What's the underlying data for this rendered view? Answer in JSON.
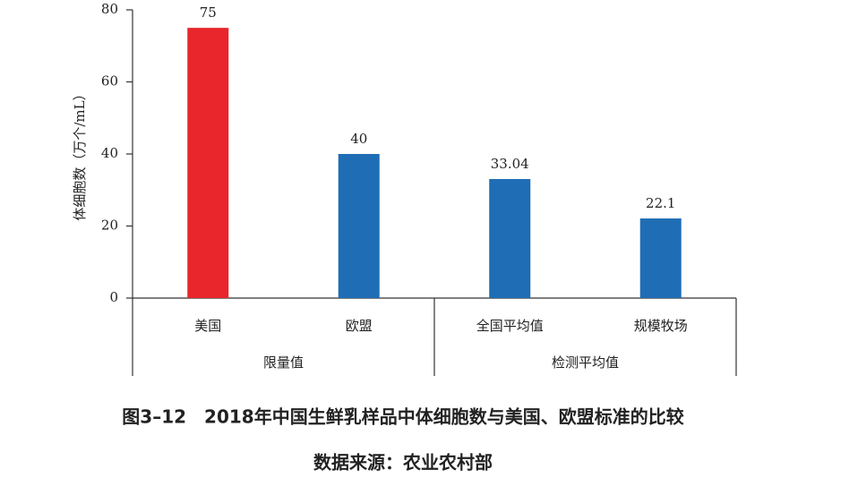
{
  "chart_data": {
    "type": "bar",
    "y_label": "体细胞数（万个/mL）",
    "groups": [
      {
        "name": "限量值",
        "categories": [
          "美国",
          "欧盟"
        ],
        "values": [
          75,
          40
        ],
        "colors": [
          "#e8262b",
          "#1f6db5"
        ]
      },
      {
        "name": "检测平均值",
        "categories": [
          "全国平均值",
          "规模牧场"
        ],
        "values": [
          33.04,
          22.1
        ],
        "colors": [
          "#1f6db5",
          "#1f6db5"
        ]
      }
    ],
    "ylim": [
      0,
      80
    ],
    "yticks": [
      0,
      20,
      40,
      60,
      80
    ],
    "caption": "图3–12　2018年中国生鲜乳样品中体细胞数与美国、欧盟标准的比较",
    "source": "数据来源：农业农村部"
  }
}
